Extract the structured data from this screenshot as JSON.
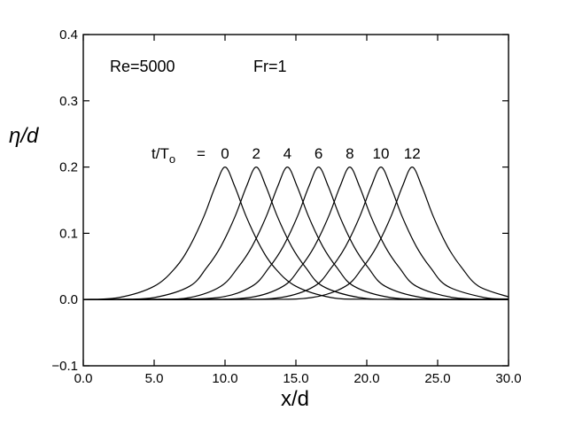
{
  "chart_data": {
    "type": "line",
    "xlabel": "x/d",
    "ylabel": "η/d",
    "xlim": [
      0,
      30
    ],
    "ylim": [
      -0.1,
      0.4
    ],
    "xticks": [
      0,
      5,
      10,
      15,
      20,
      25,
      30
    ],
    "xtick_labels": [
      "0.0",
      "5.0",
      "10.0",
      "15.0",
      "20.0",
      "25.0",
      "30.0"
    ],
    "yticks": [
      -0.1,
      0.0,
      0.1,
      0.2,
      0.3,
      0.4
    ],
    "ytick_labels": [
      "−0.1",
      "0.0",
      "0.1",
      "0.2",
      "0.3",
      "0.4"
    ],
    "grid": false,
    "annotations": {
      "reynolds": "Re=5000",
      "froude": "Fr=1",
      "time_label_prefix": "t/T",
      "time_label_subscript": "o",
      "time_label_equals": "="
    },
    "series": [
      {
        "label": "0",
        "x": [
          0,
          2.5,
          5,
          6.5,
          7.5,
          8.5,
          9.3,
          10.0,
          10.7,
          11.5,
          12.5,
          13.5,
          15,
          17.5,
          20,
          25,
          30
        ],
        "y": [
          0.0003,
          0.003,
          0.02,
          0.048,
          0.08,
          0.125,
          0.17,
          0.2,
          0.17,
          0.125,
          0.08,
          0.048,
          0.02,
          0.003,
          0.0005,
          0.0,
          0.0
        ]
      },
      {
        "label": "2",
        "x": [
          0,
          2.5,
          5,
          7.5,
          8.7,
          9.7,
          10.7,
          11.5,
          12.2,
          12.9,
          13.7,
          14.7,
          15.7,
          16.9,
          19.5,
          22.5,
          30
        ],
        "y": [
          0.0,
          0.0005,
          0.003,
          0.02,
          0.048,
          0.08,
          0.125,
          0.17,
          0.2,
          0.17,
          0.125,
          0.08,
          0.048,
          0.02,
          0.003,
          0.0003,
          0.0
        ]
      },
      {
        "label": "4",
        "x": [
          0,
          5,
          7.5,
          9.7,
          10.9,
          11.9,
          12.9,
          13.7,
          14.4,
          15.1,
          15.9,
          16.9,
          17.9,
          19.1,
          21.7,
          25,
          30
        ],
        "y": [
          0.0,
          0.0005,
          0.003,
          0.02,
          0.048,
          0.08,
          0.125,
          0.17,
          0.2,
          0.17,
          0.125,
          0.08,
          0.048,
          0.02,
          0.003,
          0.0003,
          0.0
        ]
      },
      {
        "label": "6",
        "x": [
          0,
          5,
          9.5,
          11.9,
          13.1,
          14.1,
          15.1,
          15.9,
          16.6,
          17.3,
          18.1,
          19.1,
          20.1,
          21.3,
          23.9,
          27,
          30
        ],
        "y": [
          0.0,
          0.0002,
          0.003,
          0.02,
          0.048,
          0.08,
          0.125,
          0.17,
          0.2,
          0.17,
          0.125,
          0.08,
          0.048,
          0.02,
          0.003,
          0.0003,
          0.0
        ]
      },
      {
        "label": "8",
        "x": [
          0,
          7.5,
          11.7,
          14.1,
          15.3,
          16.3,
          17.3,
          18.1,
          18.8,
          19.5,
          20.3,
          21.3,
          22.3,
          23.5,
          26.1,
          29,
          30
        ],
        "y": [
          0.0,
          0.0002,
          0.003,
          0.02,
          0.048,
          0.08,
          0.125,
          0.17,
          0.2,
          0.17,
          0.125,
          0.08,
          0.048,
          0.02,
          0.003,
          0.0005,
          0.0002
        ]
      },
      {
        "label": "10",
        "x": [
          0,
          10,
          13.9,
          16.3,
          17.5,
          18.5,
          19.5,
          20.3,
          21.0,
          21.7,
          22.5,
          23.5,
          24.5,
          25.7,
          28.3,
          30
        ],
        "y": [
          0.0,
          0.0002,
          0.003,
          0.02,
          0.048,
          0.08,
          0.125,
          0.17,
          0.2,
          0.17,
          0.125,
          0.08,
          0.048,
          0.02,
          0.003,
          0.001
        ]
      },
      {
        "label": "12",
        "x": [
          0,
          12,
          16.1,
          18.5,
          19.7,
          20.7,
          21.7,
          22.5,
          23.2,
          23.9,
          24.7,
          25.7,
          26.7,
          27.9,
          30
        ],
        "y": [
          0.0,
          0.0002,
          0.003,
          0.02,
          0.048,
          0.08,
          0.125,
          0.17,
          0.2,
          0.17,
          0.125,
          0.08,
          0.048,
          0.02,
          0.004
        ]
      }
    ]
  }
}
